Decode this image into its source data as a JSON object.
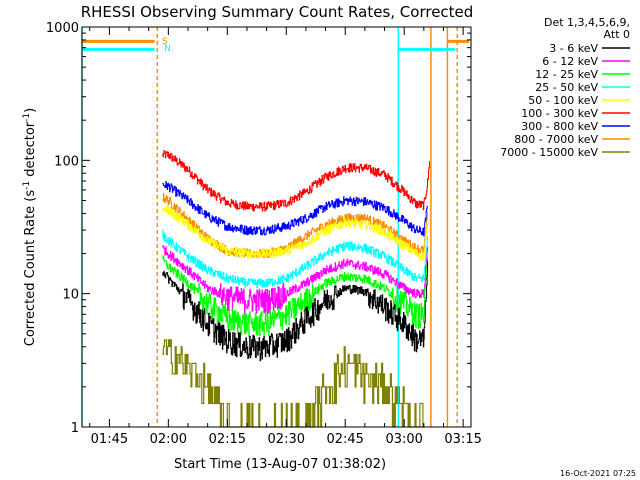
{
  "chart_data": {
    "type": "line",
    "title": "RHESSI Observing Summary Count Rates, Corrected",
    "xlabel": "Start Time (13-Aug-07 01:38:02)",
    "ylabel_main": "Corrected Count Rate (s",
    "ylabel_sup1": "-1",
    "ylabel_mid": " detector",
    "ylabel_sup2": "-1",
    "ylabel_end": ")",
    "y_scale": "log",
    "ylim": [
      1,
      1000
    ],
    "xlim_minutes": [
      98.03,
      197.0
    ],
    "x_ticks": [
      {
        "label": "01:45",
        "minute": 105
      },
      {
        "label": "02:00",
        "minute": 120
      },
      {
        "label": "02:15",
        "minute": 135
      },
      {
        "label": "02:30",
        "minute": 150
      },
      {
        "label": "02:45",
        "minute": 165
      },
      {
        "label": "03:00",
        "minute": 180
      },
      {
        "label": "03:15",
        "minute": 195
      }
    ],
    "y_ticks": [
      {
        "label": "1",
        "value": 1
      },
      {
        "label": "10",
        "value": 10
      },
      {
        "label": "100",
        "value": 100
      },
      {
        "label": "1000",
        "value": 1000
      }
    ],
    "legend": {
      "placement": "right",
      "header": [
        "Det 1,3,4,5,6,9,",
        "Att 0"
      ],
      "entries": [
        {
          "label": "3 - 6 keV",
          "color": "#000000"
        },
        {
          "label": "6 - 12 keV",
          "color": "#ff00ff"
        },
        {
          "label": "12 - 25 keV",
          "color": "#00ff00"
        },
        {
          "label": "25 - 50 keV",
          "color": "#00ffff"
        },
        {
          "label": "50 - 100 keV",
          "color": "#ffff00"
        },
        {
          "label": "100 - 300 keV",
          "color": "#ff0000"
        },
        {
          "label": "300 - 800 keV",
          "color": "#0000ff"
        },
        {
          "label": "800 - 7000 keV",
          "color": "#ff8c00"
        },
        {
          "label": "7000 - 15000 keV",
          "color": "#808000"
        }
      ]
    },
    "series": [
      {
        "band": "100 - 300 keV",
        "color": "#ff0000",
        "x": [
          118.5,
          120,
          125,
          130,
          135,
          140,
          145,
          150,
          155,
          160,
          165,
          170,
          175,
          180,
          183,
          185,
          186,
          186.5
        ],
        "y": [
          110,
          110,
          85,
          60,
          48,
          45,
          45,
          48,
          58,
          75,
          88,
          88,
          78,
          58,
          47,
          46,
          70,
          110
        ]
      },
      {
        "band": "300 - 800 keV",
        "color": "#0000ff",
        "x": [
          118.5,
          120,
          125,
          130,
          135,
          140,
          145,
          150,
          155,
          160,
          165,
          170,
          175,
          180,
          183,
          185,
          186
        ],
        "y": [
          66,
          64,
          50,
          38,
          32,
          30,
          30,
          32,
          37,
          45,
          50,
          49,
          44,
          35,
          30,
          29,
          48
        ]
      },
      {
        "band": "800 - 7000 keV",
        "color": "#ff8c00",
        "x": [
          118.5,
          120,
          125,
          130,
          135,
          140,
          145,
          150,
          155,
          160,
          165,
          170,
          175,
          180,
          183,
          185,
          186
        ],
        "y": [
          53,
          50,
          36,
          26,
          21,
          20,
          20,
          22,
          27,
          33,
          37,
          37,
          32,
          25,
          22,
          21,
          40
        ]
      },
      {
        "band": "50 - 100 keV",
        "color": "#ffff00",
        "x": [
          118.5,
          120,
          125,
          130,
          135,
          140,
          145,
          150,
          155,
          160,
          165,
          170,
          175,
          180,
          183,
          185,
          186
        ],
        "y": [
          44,
          42,
          33,
          25,
          21,
          20,
          20,
          21,
          24,
          30,
          34,
          33,
          29,
          23,
          20,
          19,
          35
        ]
      },
      {
        "band": "25 - 50 keV",
        "color": "#00ffff",
        "x": [
          118.5,
          120,
          125,
          130,
          135,
          140,
          145,
          150,
          155,
          160,
          165,
          170,
          175,
          180,
          183,
          185,
          186
        ],
        "y": [
          28,
          25,
          19,
          15,
          13,
          12,
          12,
          13,
          16,
          20,
          23,
          22,
          19,
          15,
          13,
          13,
          30
        ]
      },
      {
        "band": "6 - 12 keV",
        "color": "#ff00ff",
        "x": [
          118.5,
          120,
          125,
          130,
          135,
          140,
          145,
          150,
          155,
          160,
          165,
          170,
          175,
          180,
          183,
          185,
          186
        ],
        "y": [
          22,
          20,
          15,
          11,
          9.5,
          9,
          9,
          10,
          12,
          15,
          17,
          16,
          14,
          11,
          10,
          10,
          25
        ]
      },
      {
        "band": "12 - 25 keV",
        "color": "#00ff00",
        "x": [
          118.5,
          120,
          125,
          130,
          135,
          140,
          145,
          150,
          155,
          160,
          165,
          170,
          175,
          180,
          183,
          185,
          186
        ],
        "y": [
          18,
          16,
          12,
          8.5,
          6.5,
          6,
          6,
          7,
          9,
          12,
          13.5,
          13,
          11,
          8.5,
          7,
          7,
          22
        ]
      },
      {
        "band": "3 - 6 keV",
        "color": "#000000",
        "x": [
          118.5,
          120,
          125,
          130,
          135,
          140,
          145,
          150,
          155,
          160,
          165,
          170,
          175,
          180,
          183,
          185,
          186
        ],
        "y": [
          15,
          13,
          9,
          6,
          4.5,
          4,
          4,
          4.5,
          6.5,
          9,
          11,
          10.5,
          8,
          6,
          4.5,
          4.5,
          18
        ]
      },
      {
        "band": "7000 - 15000 keV",
        "color": "#808000",
        "x": [
          118.5,
          120,
          122,
          124,
          126,
          128,
          130,
          132,
          135,
          140,
          145,
          150,
          155,
          160,
          165,
          170,
          175,
          180,
          183,
          185
        ],
        "y": [
          3.8,
          3.5,
          3.5,
          3.0,
          2.5,
          2.5,
          2.0,
          1.5,
          1.0,
          1.0,
          1.0,
          1.0,
          1.0,
          2.0,
          3.0,
          2.5,
          2.0,
          1.5,
          1.0,
          1.0
        ]
      }
    ],
    "markers": [
      {
        "type": "vline",
        "minute": 98.03,
        "color": "#00ffff",
        "style": "solid"
      },
      {
        "type": "vline",
        "minute": 117.2,
        "color": "#ff8c00",
        "style": "dashed"
      },
      {
        "type": "vline",
        "minute": 178.5,
        "color": "#00ffff",
        "style": "solid"
      },
      {
        "type": "vline",
        "minute": 186.8,
        "color": "#ff8c00",
        "style": "solid"
      },
      {
        "type": "vline",
        "minute": 191.0,
        "color": "#ff8c00",
        "style": "solid"
      },
      {
        "type": "vline",
        "minute": 193.5,
        "color": "#ff8c00",
        "style": "dashed"
      },
      {
        "type": "hbar",
        "x0": 98.03,
        "x1": 116.5,
        "value": 780,
        "color": "#ff8c00"
      },
      {
        "type": "hbar",
        "x0": 98.03,
        "x1": 116.5,
        "value": 680,
        "color": "#00ffff"
      },
      {
        "type": "hbar",
        "x0": 178.5,
        "x1": 193.0,
        "value": 680,
        "color": "#00ffff"
      },
      {
        "type": "hbar",
        "x0": 191.0,
        "x1": 196.5,
        "value": 780,
        "color": "#ff8c00"
      }
    ],
    "marker_labels": [
      {
        "text": "S",
        "minute": 117.6,
        "color": "#ff8c00"
      },
      {
        "text": "N",
        "minute": 118.2,
        "color": "#00ffff"
      }
    ],
    "footer": "16-Oct-2021 07:25"
  }
}
